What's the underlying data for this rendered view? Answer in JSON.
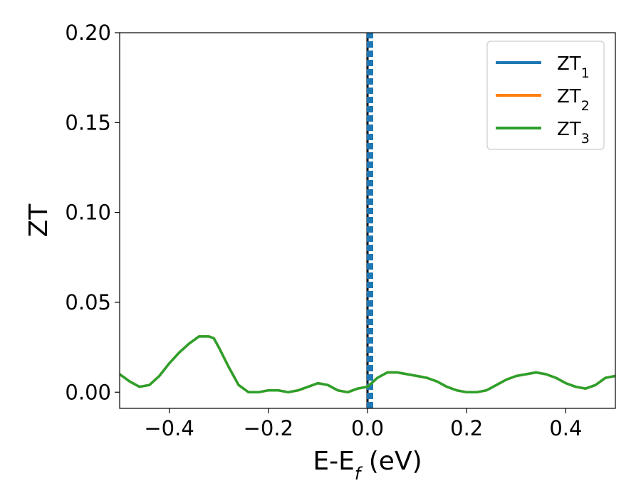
{
  "chart_data": {
    "type": "line",
    "title": "",
    "xlabel": "E-E",
    "xlabel_subscript": "f",
    "xlabel_suffix": " (eV)",
    "ylabel": "ZT",
    "xlim": [
      -0.5,
      0.5
    ],
    "ylim": [
      -0.009,
      0.2
    ],
    "x_ticks": [
      -0.4,
      -0.2,
      0.0,
      0.2,
      0.4
    ],
    "x_tick_labels": [
      "−0.4",
      "−0.2",
      "0.0",
      "0.2",
      "0.4"
    ],
    "y_ticks": [
      0.0,
      0.05,
      0.1,
      0.15,
      0.2
    ],
    "y_tick_labels": [
      "0.00",
      "0.05",
      "0.10",
      "0.15",
      "0.20"
    ],
    "grid": false,
    "legend_position": "top-right",
    "vertical_line": {
      "x": 0.0,
      "color": "#000000",
      "style": "solid"
    },
    "x": [
      -0.5,
      -0.48,
      -0.46,
      -0.44,
      -0.42,
      -0.4,
      -0.38,
      -0.36,
      -0.34,
      -0.32,
      -0.31,
      -0.3,
      -0.28,
      -0.26,
      -0.24,
      -0.22,
      -0.2,
      -0.18,
      -0.16,
      -0.14,
      -0.12,
      -0.1,
      -0.08,
      -0.06,
      -0.04,
      -0.02,
      0.0,
      0.02,
      0.04,
      0.06,
      0.08,
      0.1,
      0.12,
      0.14,
      0.16,
      0.18,
      0.2,
      0.22,
      0.24,
      0.26,
      0.28,
      0.3,
      0.32,
      0.34,
      0.36,
      0.38,
      0.4,
      0.42,
      0.44,
      0.46,
      0.48,
      0.5
    ],
    "series": [
      {
        "name": "ZT",
        "name_subscript": "1",
        "color": "#1f77b4",
        "values": [
          0.0,
          0.0,
          0.0,
          0.0,
          0.0,
          0.0,
          0.0,
          0.0,
          0.0,
          0.0,
          0.0,
          0.0,
          0.0,
          0.0,
          0.0,
          0.0,
          0.0,
          0.0,
          0.0,
          0.0,
          0.0,
          0.0,
          0.0,
          0.0,
          0.0,
          0.0,
          0.0,
          0.0,
          0.0,
          0.0,
          0.0,
          0.0,
          0.0,
          0.0,
          0.0,
          0.0,
          0.0,
          0.0,
          0.0,
          0.0,
          0.0,
          0.0,
          0.0,
          0.0,
          0.0,
          0.0,
          0.0,
          0.0,
          0.0,
          0.0,
          0.0,
          0.0
        ],
        "vertical_dashed": {
          "x": 0.005,
          "y_range": [
            -0.009,
            0.2
          ]
        }
      },
      {
        "name": "ZT",
        "name_subscript": "2",
        "color": "#ff7f0e",
        "values": [
          0.01,
          0.006,
          0.003,
          0.004,
          0.009,
          0.016,
          0.022,
          0.027,
          0.031,
          0.031,
          0.03,
          0.025,
          0.014,
          0.004,
          0.0,
          0.0,
          0.001,
          0.001,
          0.0,
          0.001,
          0.003,
          0.005,
          0.004,
          0.001,
          0.0,
          0.002,
          0.003,
          0.008,
          0.011,
          0.011,
          0.01,
          0.009,
          0.008,
          0.006,
          0.003,
          0.001,
          0.0,
          0.0,
          0.001,
          0.004,
          0.007,
          0.009,
          0.01,
          0.011,
          0.01,
          0.008,
          0.005,
          0.003,
          0.002,
          0.004,
          0.008,
          0.009
        ]
      },
      {
        "name": "ZT",
        "name_subscript": "3",
        "color": "#2ca02c",
        "values": [
          0.01,
          0.006,
          0.003,
          0.004,
          0.009,
          0.016,
          0.022,
          0.027,
          0.031,
          0.031,
          0.03,
          0.025,
          0.014,
          0.004,
          0.0,
          0.0,
          0.001,
          0.001,
          0.0,
          0.001,
          0.003,
          0.005,
          0.004,
          0.001,
          0.0,
          0.002,
          0.003,
          0.008,
          0.011,
          0.011,
          0.01,
          0.009,
          0.008,
          0.006,
          0.003,
          0.001,
          0.0,
          0.0,
          0.001,
          0.004,
          0.007,
          0.009,
          0.01,
          0.011,
          0.01,
          0.008,
          0.005,
          0.003,
          0.002,
          0.004,
          0.008,
          0.009
        ]
      }
    ]
  }
}
